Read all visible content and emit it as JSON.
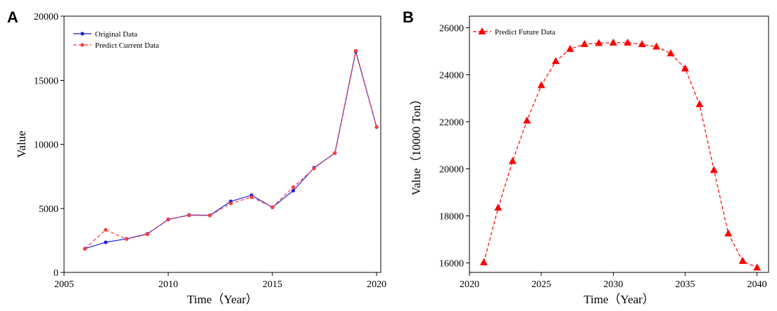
{
  "chart_data": [
    {
      "panel": "A",
      "type": "line",
      "title": "",
      "xlabel": "Time（Year）",
      "ylabel": "Value",
      "xlim": [
        2005,
        2020.2
      ],
      "ylim": [
        0,
        20000
      ],
      "xticks": [
        2005,
        2010,
        2015,
        2020
      ],
      "yticks": [
        0,
        5000,
        10000,
        15000,
        20000
      ],
      "grid": false,
      "legend_position": "top-left",
      "x": [
        2006,
        2007,
        2008,
        2009,
        2010,
        2011,
        2012,
        2013,
        2014,
        2015,
        2016,
        2017,
        2018,
        2019,
        2020
      ],
      "series": [
        {
          "name": "Original Data",
          "color": "#1f1fe0",
          "style": "solid",
          "marker": "circle",
          "values": [
            1850,
            2350,
            2620,
            3010,
            4120,
            4480,
            4460,
            5540,
            6020,
            5080,
            6380,
            8170,
            9310,
            17230,
            11340
          ]
        },
        {
          "name": "Predict Current Data",
          "color": "#ff3b3b",
          "style": "dashed",
          "marker": "circle",
          "values": [
            1840,
            3320,
            2600,
            2970,
            4150,
            4450,
            4440,
            5380,
            5870,
            5100,
            6650,
            8120,
            9330,
            17300,
            11360
          ]
        }
      ]
    },
    {
      "panel": "B",
      "type": "line",
      "title": "",
      "xlabel": "Time（Year）",
      "ylabel": "Value（10000 Ton）",
      "xlim": [
        2020,
        2040.8
      ],
      "ylim": [
        15600,
        26500
      ],
      "xticks": [
        2020,
        2025,
        2030,
        2035,
        2040
      ],
      "yticks": [
        16000,
        18000,
        20000,
        22000,
        24000,
        26000
      ],
      "grid": false,
      "legend_position": "top-left",
      "x": [
        2021,
        2022,
        2023,
        2024,
        2025,
        2026,
        2027,
        2028,
        2029,
        2030,
        2031,
        2032,
        2033,
        2034,
        2035,
        2036,
        2037,
        2038,
        2039,
        2040
      ],
      "series": [
        {
          "name": "Predict Future Data",
          "color": "#ff0000",
          "style": "dashed",
          "marker": "triangle",
          "values": [
            16020,
            18350,
            20330,
            22050,
            23560,
            24580,
            25100,
            25310,
            25350,
            25370,
            25370,
            25300,
            25200,
            24910,
            24270,
            22750,
            19950,
            17250,
            16080,
            15800
          ]
        }
      ]
    }
  ]
}
